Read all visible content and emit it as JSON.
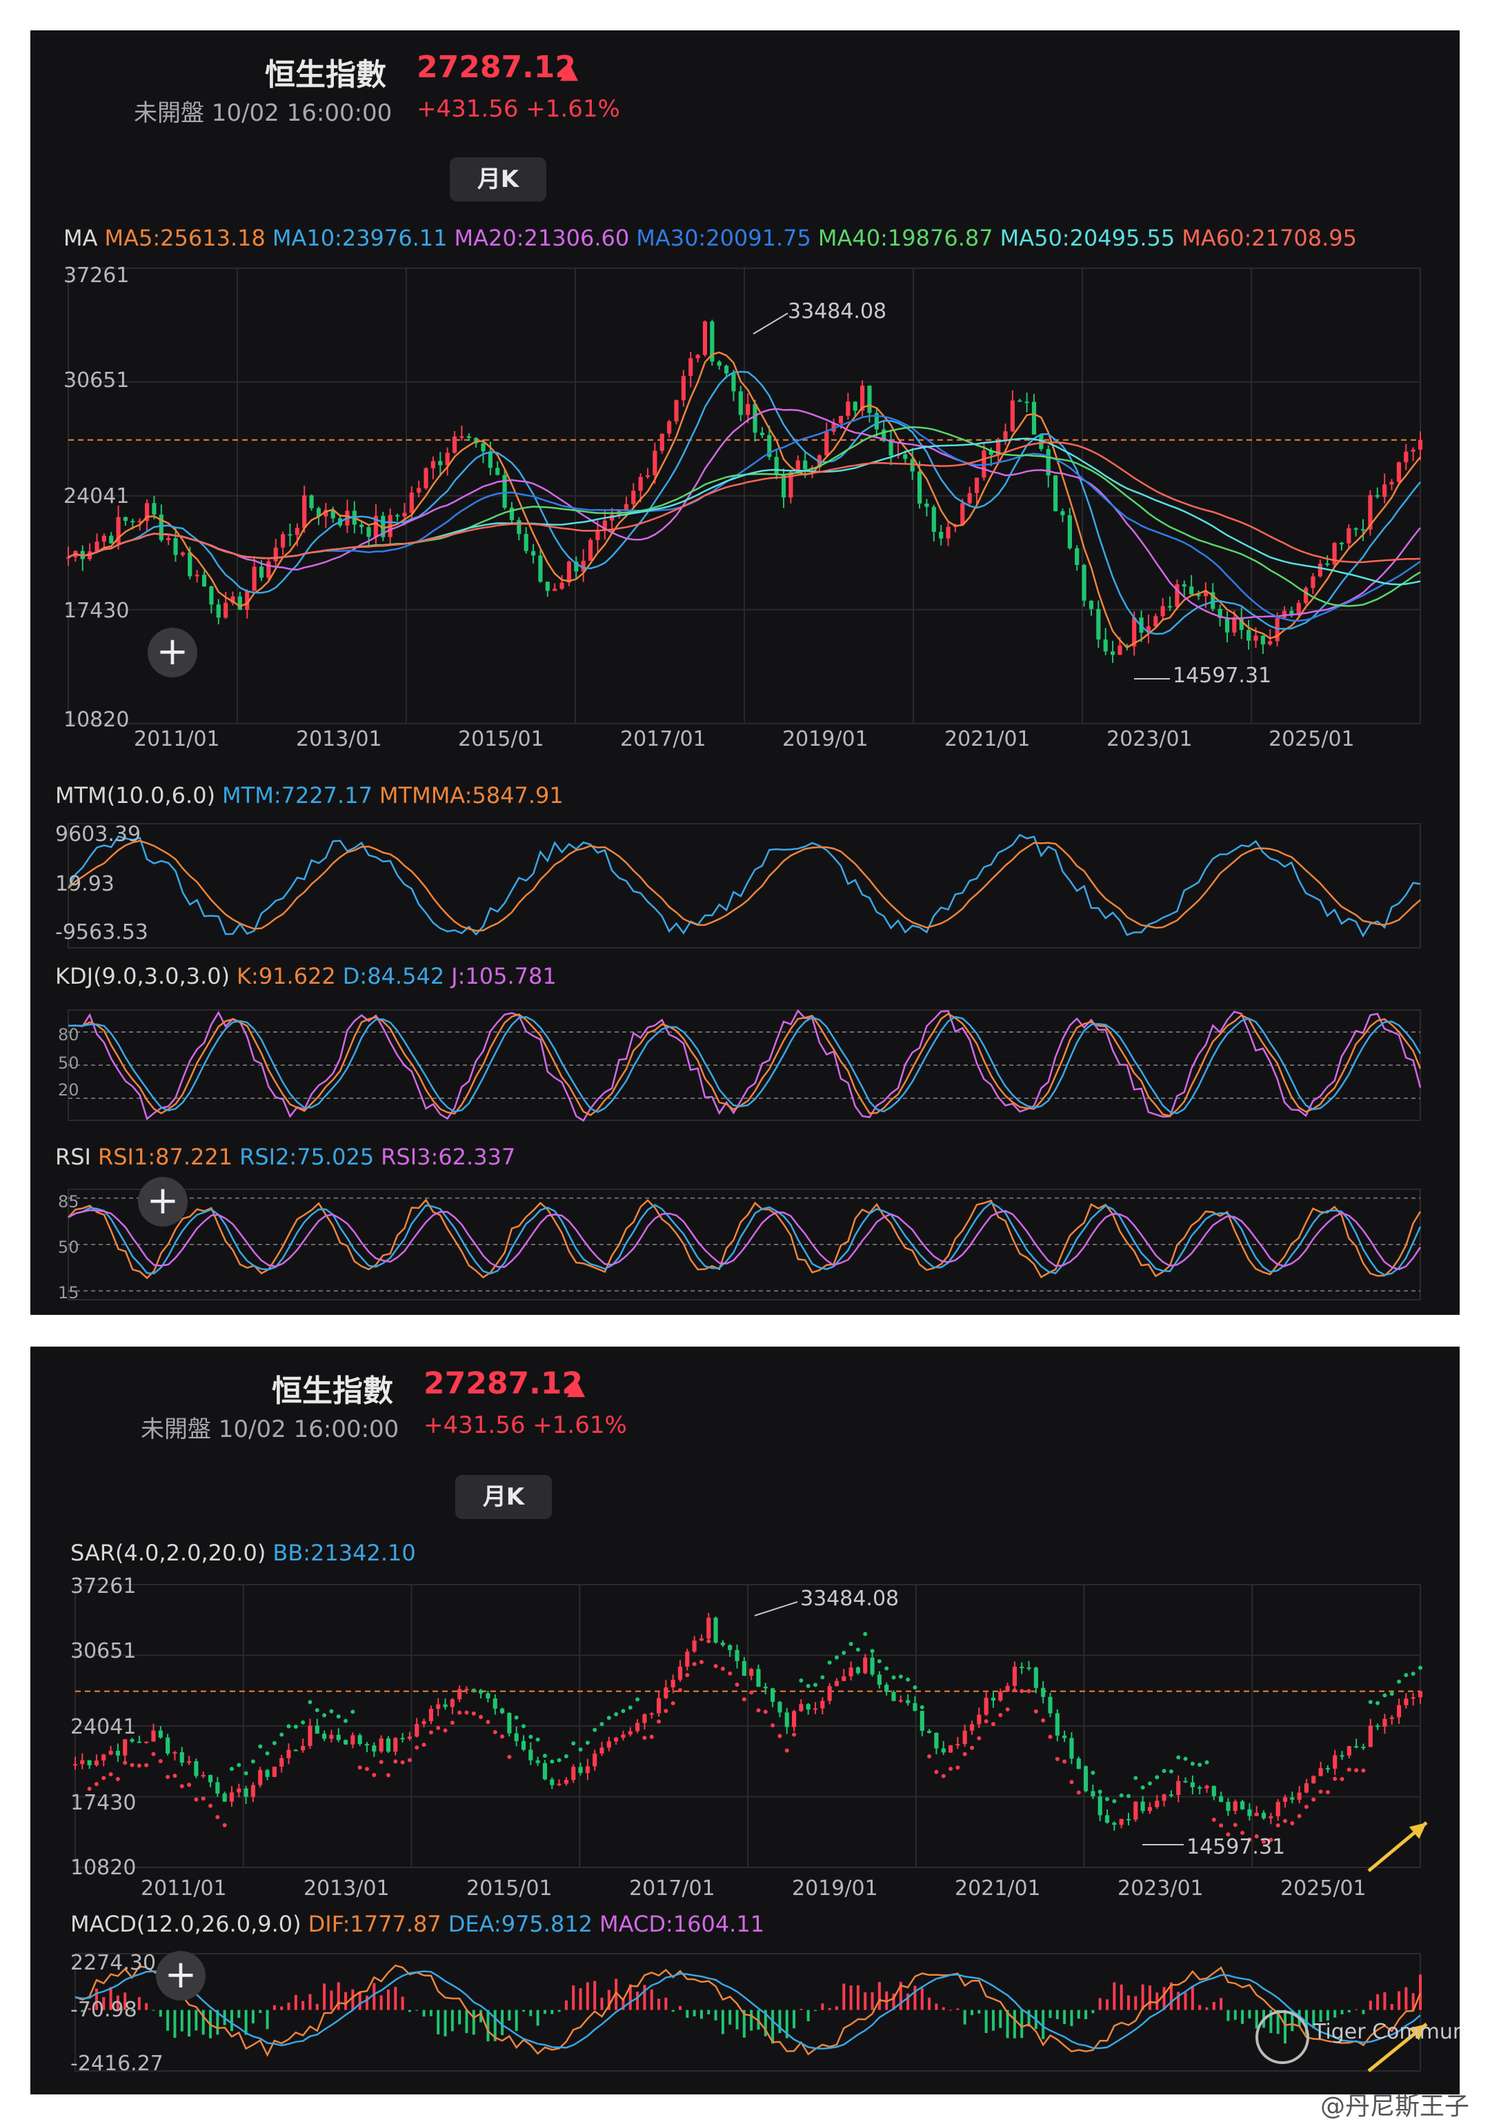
{
  "app": {
    "index_name": "恒生指數",
    "price": "27287.12",
    "status": "未開盤 10/02 16:00:00",
    "change": "+431.56 +1.61%",
    "period": "月K"
  },
  "colors": {
    "up": "#ff3b4e",
    "down": "#1fc56f",
    "ma5": "#f0843a",
    "ma10": "#39a7e6",
    "ma20": "#d468e8",
    "ma30": "#2f7de8",
    "ma40": "#5cd66a",
    "ma50": "#58e0e0",
    "ma60": "#ff6655",
    "dif": "#f0843a",
    "dea": "#39a7e6",
    "macd": "#d468e8"
  },
  "top": {
    "ma_header": {
      "label": "MA",
      "ma5": "MA5:25613.18",
      "ma10": "MA10:23976.11",
      "ma20": "MA20:21306.60",
      "ma30": "MA30:20091.75",
      "ma40": "MA40:19876.87",
      "ma50": "MA50:20495.55",
      "ma60": "MA60:21708.95"
    },
    "y_labels": [
      "37261",
      "30651",
      "24041",
      "17430",
      "10820"
    ],
    "x_labels": [
      "2011/01",
      "2013/01",
      "2015/01",
      "2017/01",
      "2019/01",
      "2021/01",
      "2023/01",
      "2025/01"
    ],
    "high_label": "33484.08",
    "low_label": "14597.31",
    "mtm": {
      "label": "MTM(10.0,6.0)",
      "mtm": "MTM:7227.17",
      "mtmma": "MTMMA:5847.91",
      "y_labels": [
        "9603.39",
        "19.93",
        "-9563.53"
      ]
    },
    "kdj": {
      "label": "KDJ(9.0,3.0,3.0)",
      "k": "K:91.622",
      "d": "D:84.542",
      "j": "J:105.781",
      "levels": [
        "80",
        "50",
        "20"
      ]
    },
    "rsi": {
      "label": "RSI",
      "rsi1": "RSI1:87.221",
      "rsi2": "RSI2:75.025",
      "rsi3": "RSI3:62.337",
      "levels": [
        "85",
        "50",
        "15"
      ]
    }
  },
  "bottom": {
    "sar_header": {
      "label": "SAR(4.0,2.0,20.0)",
      "bb": "BB:21342.10"
    },
    "y_labels": [
      "37261",
      "30651",
      "24041",
      "17430",
      "10820"
    ],
    "x_labels": [
      "2011/01",
      "2013/01",
      "2015/01",
      "2017/01",
      "2019/01",
      "2021/01",
      "2023/01",
      "2025/01"
    ],
    "high_label": "33484.08",
    "low_label": "14597.31",
    "macd": {
      "label": "MACD(12.0,26.0,9.0)",
      "dif": "DIF:1777.87",
      "dea": "DEA:975.812",
      "macd": "MACD:1604.11",
      "y_labels": [
        "2274.30",
        "-70.98",
        "-2416.27"
      ]
    }
  },
  "watermark": {
    "community": "Tiger Community",
    "author": "@丹尼斯王子"
  },
  "chart_data": {
    "type": "line",
    "title": "恒生指數",
    "x_range": [
      "2010/01",
      "2025/10"
    ],
    "y_range": [
      10820,
      37261
    ],
    "series": [
      {
        "name": "恒生指數",
        "x": [
          "2010/01",
          "2011/01",
          "2011/10",
          "2013/01",
          "2014/01",
          "2015/04",
          "2016/02",
          "2017/01",
          "2018/01",
          "2018/10",
          "2019/04",
          "2020/03",
          "2021/02",
          "2022/10",
          "2023/06",
          "2024/01",
          "2024/10",
          "2025/10"
        ],
        "values": [
          20500,
          23200,
          17000,
          23500,
          22000,
          28500,
          18500,
          23000,
          33484,
          24500,
          30000,
          21700,
          30500,
          14597,
          19000,
          15000,
          21000,
          27287
        ]
      }
    ],
    "annotations": {
      "high": 33484.08,
      "low": 14597.31,
      "last": 27287.12
    }
  }
}
